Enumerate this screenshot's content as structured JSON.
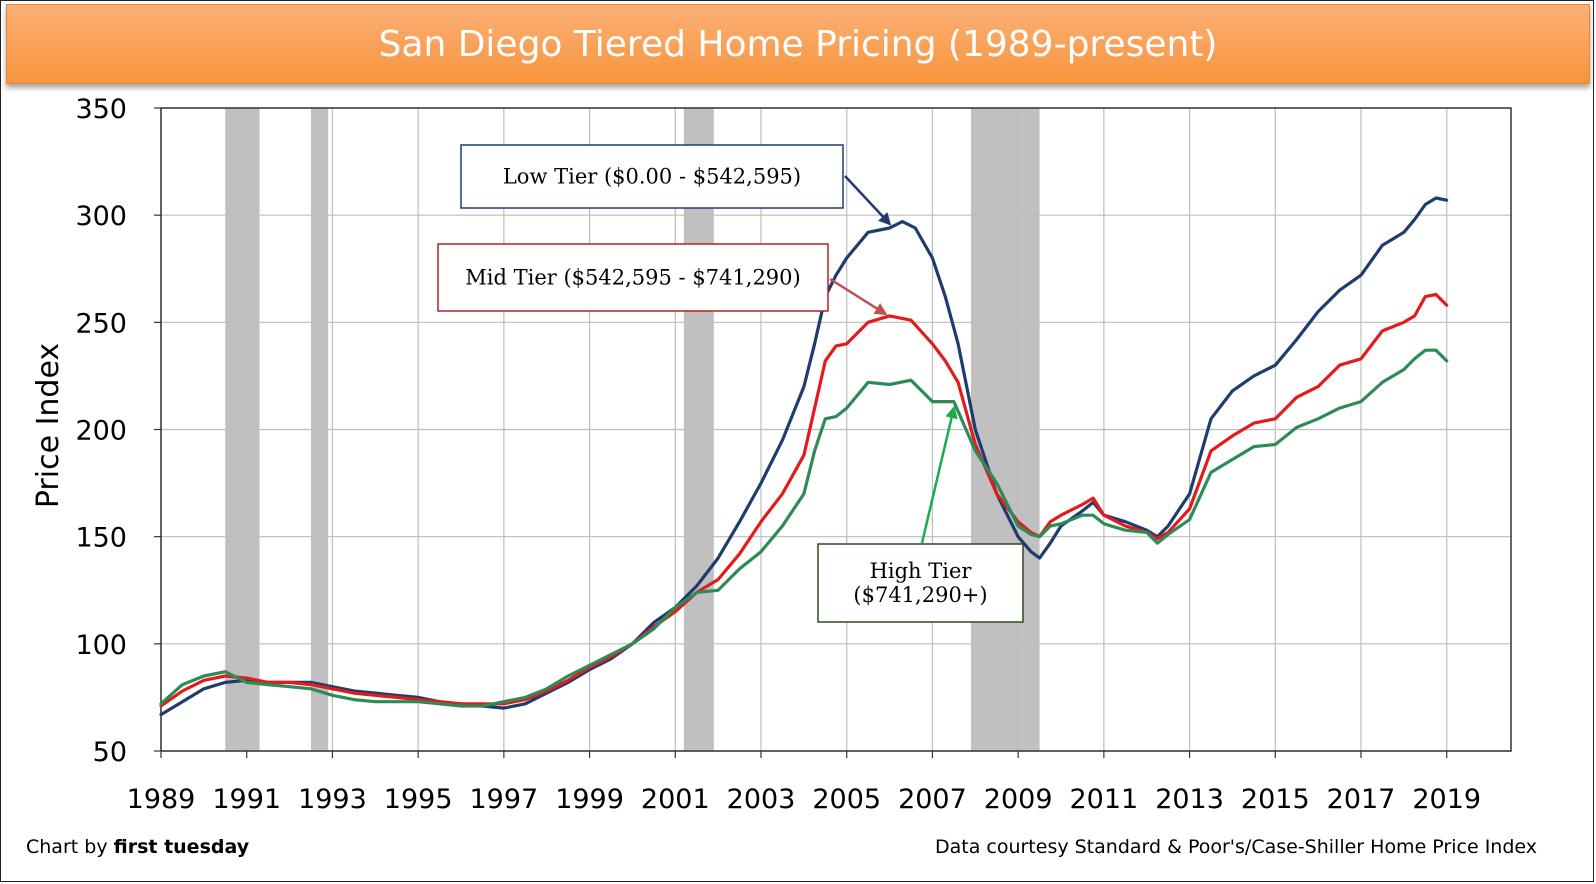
{
  "title": "San Diego Tiered Home Pricing (1989-present)",
  "footer": {
    "credit_prefix": "Chart by ",
    "credit_name": "first tuesday",
    "source": "Data courtesy Standard & Poor's/Case-Shiller Home Price Index"
  },
  "chart_data": {
    "type": "line",
    "title": "San Diego Tiered Home Pricing (1989-present)",
    "xlabel": "",
    "ylabel": "Price Index",
    "xlim": [
      1989,
      2020.5
    ],
    "ylim": [
      50,
      350
    ],
    "x_ticks": [
      1989,
      1991,
      1993,
      1995,
      1997,
      1999,
      2001,
      2003,
      2005,
      2007,
      2009,
      2011,
      2013,
      2015,
      2017,
      2019
    ],
    "y_ticks": [
      50,
      100,
      150,
      200,
      250,
      300,
      350
    ],
    "grid": true,
    "recession_shading": [
      [
        1990.5,
        1991.3
      ],
      [
        1992.5,
        1992.9
      ],
      [
        2001.2,
        2001.9
      ],
      [
        2007.9,
        2009.5
      ]
    ],
    "series": [
      {
        "name": "Low Tier ($0.00 - $542,595)",
        "color": "#1f3c6e",
        "points": [
          [
            1989.0,
            67
          ],
          [
            1989.5,
            73
          ],
          [
            1990.0,
            79
          ],
          [
            1990.5,
            82
          ],
          [
            1991.0,
            83
          ],
          [
            1991.5,
            82
          ],
          [
            1992.0,
            82
          ],
          [
            1992.5,
            82
          ],
          [
            1993.0,
            80
          ],
          [
            1993.5,
            78
          ],
          [
            1994.0,
            77
          ],
          [
            1994.5,
            76
          ],
          [
            1995.0,
            75
          ],
          [
            1995.5,
            73
          ],
          [
            1996.0,
            72
          ],
          [
            1996.5,
            71
          ],
          [
            1997.0,
            70
          ],
          [
            1997.5,
            72
          ],
          [
            1998.0,
            77
          ],
          [
            1998.5,
            82
          ],
          [
            1999.0,
            88
          ],
          [
            1999.5,
            93
          ],
          [
            2000.0,
            100
          ],
          [
            2000.5,
            110
          ],
          [
            2001.0,
            117
          ],
          [
            2001.5,
            127
          ],
          [
            2002.0,
            140
          ],
          [
            2002.5,
            157
          ],
          [
            2003.0,
            175
          ],
          [
            2003.5,
            195
          ],
          [
            2004.0,
            220
          ],
          [
            2004.25,
            240
          ],
          [
            2004.5,
            262
          ],
          [
            2004.75,
            272
          ],
          [
            2005.0,
            280
          ],
          [
            2005.5,
            292
          ],
          [
            2006.0,
            294
          ],
          [
            2006.3,
            297
          ],
          [
            2006.6,
            294
          ],
          [
            2007.0,
            280
          ],
          [
            2007.3,
            262
          ],
          [
            2007.6,
            240
          ],
          [
            2008.0,
            200
          ],
          [
            2008.5,
            170
          ],
          [
            2009.0,
            150
          ],
          [
            2009.3,
            143
          ],
          [
            2009.5,
            140
          ],
          [
            2009.75,
            147
          ],
          [
            2010.0,
            155
          ],
          [
            2010.5,
            162
          ],
          [
            2010.75,
            166
          ],
          [
            2011.0,
            160
          ],
          [
            2011.5,
            157
          ],
          [
            2012.0,
            153
          ],
          [
            2012.25,
            150
          ],
          [
            2012.5,
            155
          ],
          [
            2013.0,
            170
          ],
          [
            2013.5,
            205
          ],
          [
            2014.0,
            218
          ],
          [
            2014.5,
            225
          ],
          [
            2015.0,
            230
          ],
          [
            2015.5,
            242
          ],
          [
            2016.0,
            255
          ],
          [
            2016.5,
            265
          ],
          [
            2017.0,
            272
          ],
          [
            2017.5,
            286
          ],
          [
            2018.0,
            292
          ],
          [
            2018.25,
            298
          ],
          [
            2018.5,
            305
          ],
          [
            2018.75,
            308
          ],
          [
            2019.0,
            307
          ]
        ]
      },
      {
        "name": "Mid Tier ($542,595 - $741,290)",
        "color": "#e31b1b",
        "points": [
          [
            1989.0,
            71
          ],
          [
            1989.5,
            78
          ],
          [
            1990.0,
            83
          ],
          [
            1990.5,
            85
          ],
          [
            1991.0,
            84
          ],
          [
            1991.5,
            82
          ],
          [
            1992.0,
            82
          ],
          [
            1992.5,
            81
          ],
          [
            1993.0,
            79
          ],
          [
            1993.5,
            77
          ],
          [
            1994.0,
            76
          ],
          [
            1994.5,
            75
          ],
          [
            1995.0,
            74
          ],
          [
            1995.5,
            73
          ],
          [
            1996.0,
            72
          ],
          [
            1996.5,
            72
          ],
          [
            1997.0,
            72
          ],
          [
            1997.5,
            74
          ],
          [
            1998.0,
            78
          ],
          [
            1998.5,
            83
          ],
          [
            1999.0,
            89
          ],
          [
            1999.5,
            94
          ],
          [
            2000.0,
            100
          ],
          [
            2000.5,
            108
          ],
          [
            2001.0,
            115
          ],
          [
            2001.5,
            124
          ],
          [
            2002.0,
            130
          ],
          [
            2002.5,
            142
          ],
          [
            2003.0,
            157
          ],
          [
            2003.5,
            170
          ],
          [
            2004.0,
            188
          ],
          [
            2004.25,
            210
          ],
          [
            2004.5,
            232
          ],
          [
            2004.75,
            239
          ],
          [
            2005.0,
            240
          ],
          [
            2005.5,
            250
          ],
          [
            2006.0,
            253
          ],
          [
            2006.5,
            251
          ],
          [
            2007.0,
            240
          ],
          [
            2007.3,
            232
          ],
          [
            2007.6,
            222
          ],
          [
            2008.0,
            193
          ],
          [
            2008.5,
            170
          ],
          [
            2009.0,
            157
          ],
          [
            2009.3,
            152
          ],
          [
            2009.5,
            150
          ],
          [
            2009.75,
            157
          ],
          [
            2010.0,
            160
          ],
          [
            2010.5,
            165
          ],
          [
            2010.75,
            168
          ],
          [
            2011.0,
            160
          ],
          [
            2011.5,
            155
          ],
          [
            2012.0,
            152
          ],
          [
            2012.25,
            149
          ],
          [
            2012.5,
            152
          ],
          [
            2013.0,
            163
          ],
          [
            2013.5,
            190
          ],
          [
            2014.0,
            197
          ],
          [
            2014.5,
            203
          ],
          [
            2015.0,
            205
          ],
          [
            2015.5,
            215
          ],
          [
            2016.0,
            220
          ],
          [
            2016.5,
            230
          ],
          [
            2017.0,
            233
          ],
          [
            2017.5,
            246
          ],
          [
            2018.0,
            250
          ],
          [
            2018.25,
            253
          ],
          [
            2018.5,
            262
          ],
          [
            2018.75,
            263
          ],
          [
            2019.0,
            258
          ]
        ]
      },
      {
        "name": "High Tier ($741,290+)",
        "color": "#2e8b57",
        "points": [
          [
            1989.0,
            72
          ],
          [
            1989.5,
            81
          ],
          [
            1990.0,
            85
          ],
          [
            1990.5,
            87
          ],
          [
            1991.0,
            82
          ],
          [
            1991.5,
            81
          ],
          [
            1992.0,
            80
          ],
          [
            1992.5,
            79
          ],
          [
            1993.0,
            76
          ],
          [
            1993.5,
            74
          ],
          [
            1994.0,
            73
          ],
          [
            1994.5,
            73
          ],
          [
            1995.0,
            73
          ],
          [
            1995.5,
            72
          ],
          [
            1996.0,
            71
          ],
          [
            1996.5,
            71
          ],
          [
            1997.0,
            73
          ],
          [
            1997.5,
            75
          ],
          [
            1998.0,
            79
          ],
          [
            1998.5,
            85
          ],
          [
            1999.0,
            90
          ],
          [
            1999.5,
            95
          ],
          [
            2000.0,
            100
          ],
          [
            2000.5,
            107
          ],
          [
            2001.0,
            117
          ],
          [
            2001.5,
            124
          ],
          [
            2002.0,
            125
          ],
          [
            2002.5,
            135
          ],
          [
            2003.0,
            143
          ],
          [
            2003.5,
            155
          ],
          [
            2004.0,
            170
          ],
          [
            2004.25,
            190
          ],
          [
            2004.5,
            205
          ],
          [
            2004.75,
            206
          ],
          [
            2005.0,
            210
          ],
          [
            2005.5,
            222
          ],
          [
            2006.0,
            221
          ],
          [
            2006.5,
            223
          ],
          [
            2007.0,
            213
          ],
          [
            2007.5,
            213
          ],
          [
            2008.0,
            190
          ],
          [
            2008.5,
            175
          ],
          [
            2009.0,
            155
          ],
          [
            2009.3,
            151
          ],
          [
            2009.5,
            150
          ],
          [
            2009.75,
            155
          ],
          [
            2010.0,
            156
          ],
          [
            2010.5,
            160
          ],
          [
            2010.75,
            160
          ],
          [
            2011.0,
            156
          ],
          [
            2011.5,
            153
          ],
          [
            2012.0,
            152
          ],
          [
            2012.25,
            147
          ],
          [
            2012.5,
            151
          ],
          [
            2013.0,
            158
          ],
          [
            2013.5,
            180
          ],
          [
            2014.0,
            186
          ],
          [
            2014.5,
            192
          ],
          [
            2015.0,
            193
          ],
          [
            2015.5,
            201
          ],
          [
            2016.0,
            205
          ],
          [
            2016.5,
            210
          ],
          [
            2017.0,
            213
          ],
          [
            2017.5,
            222
          ],
          [
            2018.0,
            228
          ],
          [
            2018.25,
            233
          ],
          [
            2018.5,
            237
          ],
          [
            2018.75,
            237
          ],
          [
            2019.0,
            232
          ]
        ]
      }
    ],
    "annotations": [
      {
        "lines": [
          "Low Tier ($0.00 - $542,595)"
        ],
        "border": "#1f3c6e",
        "arrow_color": "#1f3c6e",
        "target": [
          2006.0,
          296
        ]
      },
      {
        "lines": [
          "Mid Tier ($542,595 - $741,290)"
        ],
        "border": "#b22222",
        "arrow_color": "#c0504d",
        "target": [
          2005.9,
          254
        ]
      },
      {
        "lines": [
          "High Tier",
          "($741,290+)"
        ],
        "border": "#2d4a1e",
        "arrow_color": "#1aac4a",
        "target": [
          2007.5,
          210
        ]
      }
    ]
  }
}
